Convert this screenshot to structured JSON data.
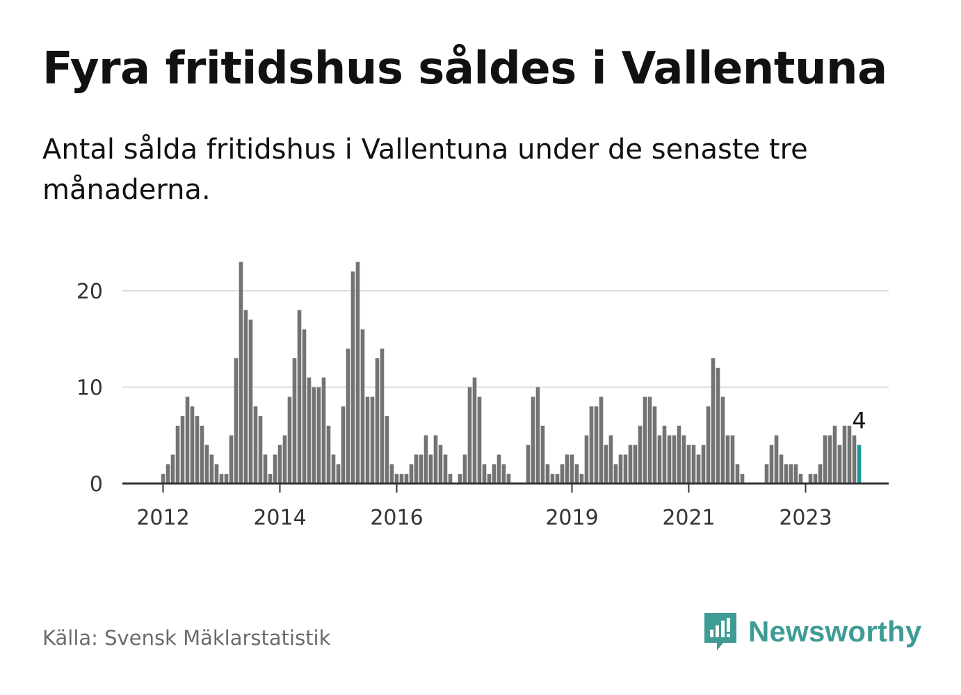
{
  "title": "Fyra fritidshus såldes i Vallentuna",
  "subtitle": "Antal sålda fritidshus i Vallentuna under de senaste tre månaderna.",
  "source": "Källa: Svensk Mäklarstatistik",
  "brand": {
    "name": "Newsworthy",
    "icon": "newsworthy-logo-icon",
    "color": "#3f9c95"
  },
  "colors": {
    "bar": "#737373",
    "highlight": "#1a9c90",
    "grid": "#dddddd",
    "axis": "#333333"
  },
  "chart_data": {
    "type": "bar",
    "title": "Fyra fritidshus såldes i Vallentuna",
    "xlabel": "",
    "ylabel": "",
    "ylim": [
      0,
      23
    ],
    "yticks": [
      0,
      10,
      20
    ],
    "xtick_labels": [
      {
        "label": "2012",
        "index": 8
      },
      {
        "label": "2014",
        "index": 32
      },
      {
        "label": "2016",
        "index": 56
      },
      {
        "label": "2019",
        "index": 92
      },
      {
        "label": "2021",
        "index": 116
      },
      {
        "label": "2023",
        "index": 140
      }
    ],
    "values": [
      0,
      0,
      0,
      0,
      0,
      0,
      0,
      0,
      1,
      2,
      3,
      6,
      7,
      9,
      8,
      7,
      6,
      4,
      3,
      2,
      1,
      1,
      5,
      13,
      23,
      18,
      17,
      8,
      7,
      3,
      1,
      3,
      4,
      5,
      9,
      13,
      18,
      16,
      11,
      10,
      10,
      11,
      6,
      3,
      2,
      8,
      14,
      22,
      23,
      16,
      9,
      9,
      13,
      14,
      7,
      2,
      1,
      1,
      1,
      2,
      3,
      3,
      5,
      3,
      5,
      4,
      3,
      1,
      0,
      1,
      3,
      10,
      11,
      9,
      2,
      1,
      2,
      3,
      2,
      1,
      0,
      0,
      0,
      4,
      9,
      10,
      6,
      2,
      1,
      1,
      2,
      3,
      3,
      2,
      1,
      5,
      8,
      8,
      9,
      4,
      5,
      2,
      3,
      3,
      4,
      4,
      6,
      9,
      9,
      8,
      5,
      6,
      5,
      5,
      6,
      5,
      4,
      4,
      3,
      4,
      8,
      13,
      12,
      9,
      5,
      5,
      2,
      1,
      0,
      0,
      0,
      0,
      2,
      4,
      5,
      3,
      2,
      2,
      2,
      1,
      0,
      1,
      1,
      2,
      5,
      5,
      6,
      4,
      6,
      6,
      5,
      4
    ],
    "highlight_index": 151,
    "annotation": "4"
  }
}
